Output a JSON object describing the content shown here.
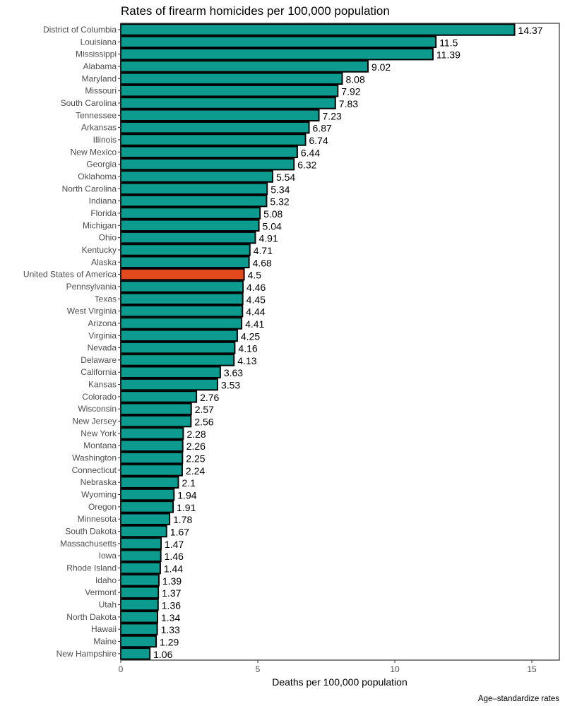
{
  "chart_data": {
    "type": "bar",
    "orientation": "horizontal",
    "title": "Rates of firearm homicides per 100,000 population",
    "xlabel": "Deaths per 100,000 population",
    "ylabel": "",
    "caption": "Age–standardize rates",
    "xlim": [
      0,
      16
    ],
    "xticks": [
      0,
      5,
      10,
      15
    ],
    "grid": false,
    "colors": {
      "default": "#0d9a8f",
      "highlight": "#e24a1e",
      "border": "#000000"
    },
    "highlight": "United States of America",
    "categories": [
      "District of Columbia",
      "Louisiana",
      "Mississippi",
      "Alabama",
      "Maryland",
      "Missouri",
      "South Carolina",
      "Tennessee",
      "Arkansas",
      "Illinois",
      "New Mexico",
      "Georgia",
      "Oklahoma",
      "North Carolina",
      "Indiana",
      "Florida",
      "Michigan",
      "Ohio",
      "Kentucky",
      "Alaska",
      "United States of America",
      "Pennsylvania",
      "Texas",
      "West Virginia",
      "Arizona",
      "Virginia",
      "Nevada",
      "Delaware",
      "California",
      "Kansas",
      "Colorado",
      "Wisconsin",
      "New Jersey",
      "New York",
      "Montana",
      "Washington",
      "Connecticut",
      "Nebraska",
      "Wyoming",
      "Oregon",
      "Minnesota",
      "South Dakota",
      "Massachusetts",
      "Iowa",
      "Rhode Island",
      "Idaho",
      "Vermont",
      "Utah",
      "North Dakota",
      "Hawaii",
      "Maine",
      "New Hampshire"
    ],
    "values": [
      14.37,
      11.5,
      11.39,
      9.02,
      8.08,
      7.92,
      7.83,
      7.23,
      6.87,
      6.74,
      6.44,
      6.32,
      5.54,
      5.34,
      5.32,
      5.08,
      5.04,
      4.91,
      4.71,
      4.68,
      4.5,
      4.46,
      4.45,
      4.44,
      4.41,
      4.25,
      4.16,
      4.13,
      3.63,
      3.53,
      2.76,
      2.57,
      2.56,
      2.28,
      2.26,
      2.25,
      2.24,
      2.1,
      1.94,
      1.91,
      1.78,
      1.67,
      1.47,
      1.46,
      1.44,
      1.39,
      1.37,
      1.36,
      1.34,
      1.33,
      1.29,
      1.06
    ]
  }
}
